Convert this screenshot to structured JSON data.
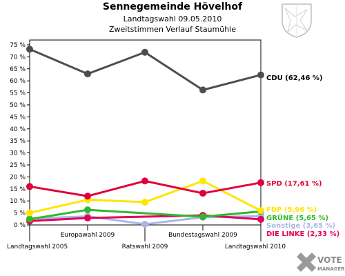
{
  "header": {
    "title": "Sennegemeinde Hövelhof",
    "subtitle": "Landtagswahl 09.05.2010",
    "subtitle2": "Zweitstimmen Verlauf Staumühle"
  },
  "logo": {
    "word1": "VOTE",
    "word2": "MANAGER"
  },
  "chart_data": {
    "type": "line",
    "categories": [
      "Landtagswahl 2005",
      "Europawahl 2009",
      "Ratswahl 2009",
      "Bundestagswahl 2009",
      "Landtagswahl 2010"
    ],
    "y_ticks": [
      "0 %",
      "5 %",
      "10 %",
      "15 %",
      "20 %",
      "25 %",
      "30 %",
      "35 %",
      "40 %",
      "45 %",
      "50 %",
      "55 %",
      "60 %",
      "65 %",
      "70 %",
      "75 %"
    ],
    "ylim": [
      0,
      77
    ],
    "grid": false,
    "legend_position": "right",
    "series": [
      {
        "name": "CDU",
        "label": "CDU (62,46 %)",
        "color": "#4d4d4d",
        "values": [
          73.2,
          62.9,
          71.9,
          56.2,
          62.46
        ]
      },
      {
        "name": "SPD",
        "label": "SPD (17,61 %)",
        "color": "#e2003a",
        "values": [
          16.0,
          12.0,
          18.3,
          13.2,
          17.61
        ]
      },
      {
        "name": "FDP",
        "label": "FDP (5,96 %)",
        "color": "#ffe500",
        "values": [
          5.0,
          10.5,
          9.5,
          18.3,
          5.96
        ]
      },
      {
        "name": "GRÜNE",
        "label": "GRÜNE (5,65 %)",
        "color": "#2eb82e",
        "values": [
          2.4,
          6.3,
          null,
          3.4,
          5.65
        ]
      },
      {
        "name": "Sonstige",
        "label": "Sonstige (3,65 %)",
        "color": "#a9b7e3",
        "values": [
          2.6,
          3.6,
          0.3,
          3.2,
          3.65
        ]
      },
      {
        "name": "DIE LINKE",
        "label": "DIE LINKE (2,33 %)",
        "color": "#e2005a",
        "values": [
          1.6,
          2.9,
          null,
          4.0,
          2.33
        ]
      }
    ]
  }
}
